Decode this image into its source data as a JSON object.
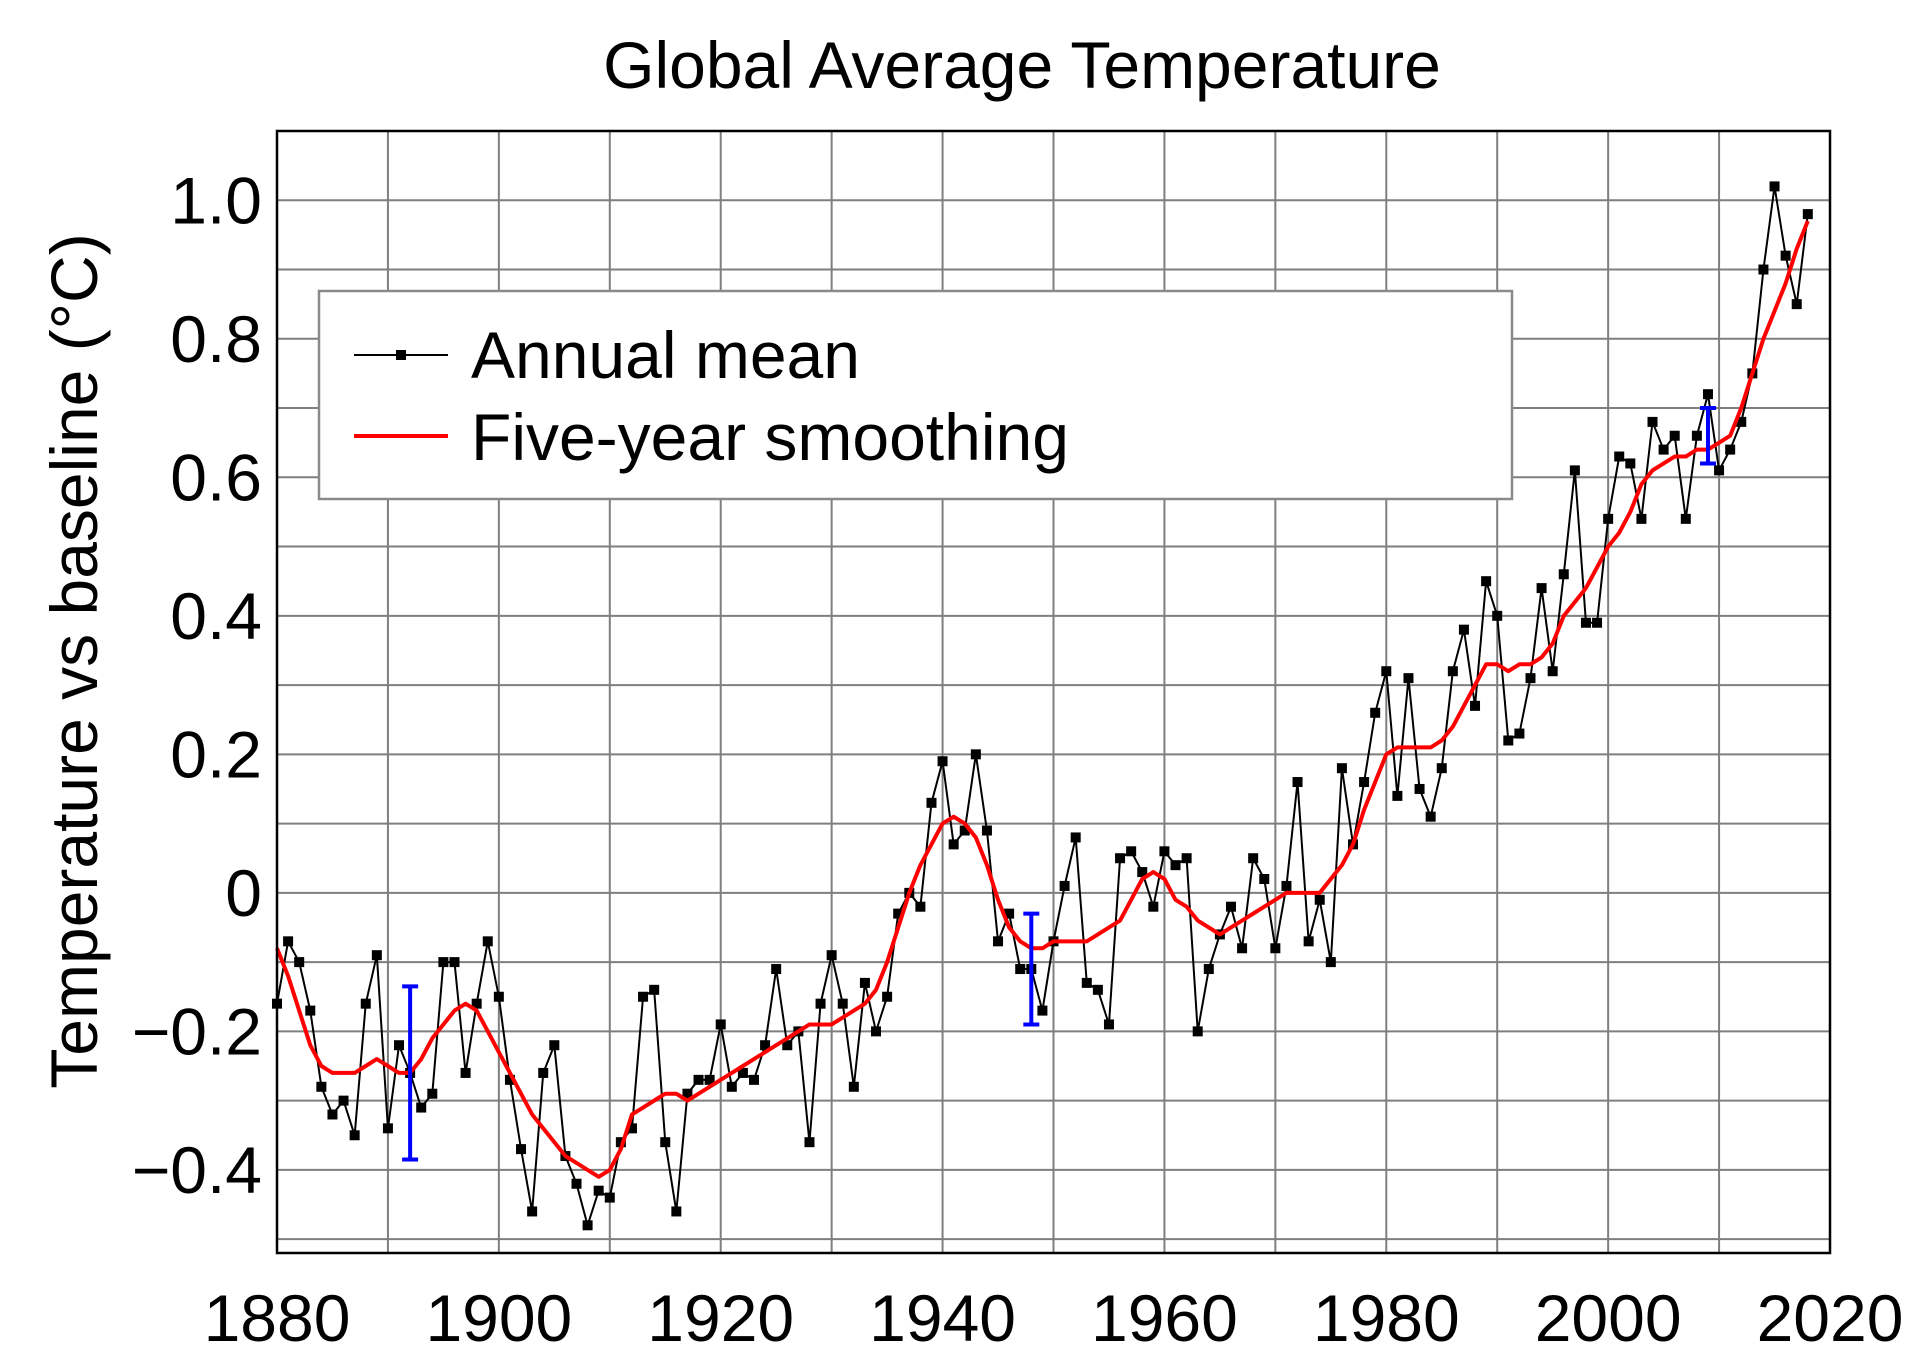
{
  "chart_data": {
    "type": "line",
    "title": "Global Average Temperature",
    "xlabel": "",
    "ylabel": "Temperature vs baseline (°C)",
    "xlim": [
      1880,
      2020
    ],
    "ylim": [
      -0.52,
      1.1
    ],
    "grid": true,
    "legend_position": "top-left",
    "x_ticks": [
      1880,
      1900,
      1920,
      1940,
      1960,
      1980,
      2000,
      2020
    ],
    "x_tick_labels": [
      "1880",
      "1900",
      "1920",
      "1940",
      "1960",
      "1980",
      "2000",
      "2020"
    ],
    "y_ticks": [
      -0.4,
      -0.2,
      0,
      0.2,
      0.4,
      0.6,
      0.8,
      1.0
    ],
    "y_tick_labels": [
      "−0.4",
      "−0.2",
      "0",
      "0.2",
      "0.4",
      "0.6",
      "0.8",
      "1.0"
    ],
    "series": [
      {
        "name": "Annual mean",
        "color": "#000000",
        "marker": "square",
        "x": [
          1880,
          1881,
          1882,
          1883,
          1884,
          1885,
          1886,
          1887,
          1888,
          1889,
          1890,
          1891,
          1892,
          1893,
          1894,
          1895,
          1896,
          1897,
          1898,
          1899,
          1900,
          1901,
          1902,
          1903,
          1904,
          1905,
          1906,
          1907,
          1908,
          1909,
          1910,
          1911,
          1912,
          1913,
          1914,
          1915,
          1916,
          1917,
          1918,
          1919,
          1920,
          1921,
          1922,
          1923,
          1924,
          1925,
          1926,
          1927,
          1928,
          1929,
          1930,
          1931,
          1932,
          1933,
          1934,
          1935,
          1936,
          1937,
          1938,
          1939,
          1940,
          1941,
          1942,
          1943,
          1944,
          1945,
          1946,
          1947,
          1948,
          1949,
          1950,
          1951,
          1952,
          1953,
          1954,
          1955,
          1956,
          1957,
          1958,
          1959,
          1960,
          1961,
          1962,
          1963,
          1964,
          1965,
          1966,
          1967,
          1968,
          1969,
          1970,
          1971,
          1972,
          1973,
          1974,
          1975,
          1976,
          1977,
          1978,
          1979,
          1980,
          1981,
          1982,
          1983,
          1984,
          1985,
          1986,
          1987,
          1988,
          1989,
          1990,
          1991,
          1992,
          1993,
          1994,
          1995,
          1996,
          1997,
          1998,
          1999,
          2000,
          2001,
          2002,
          2003,
          2004,
          2005,
          2006,
          2007,
          2008,
          2009,
          2010,
          2011,
          2012,
          2013,
          2014,
          2015,
          2016,
          2017,
          2018
        ],
        "values": [
          -0.16,
          -0.07,
          -0.1,
          -0.17,
          -0.28,
          -0.32,
          -0.3,
          -0.35,
          -0.16,
          -0.09,
          -0.34,
          -0.22,
          -0.26,
          -0.31,
          -0.29,
          -0.1,
          -0.1,
          -0.26,
          -0.16,
          -0.07,
          -0.15,
          -0.27,
          -0.37,
          -0.46,
          -0.26,
          -0.22,
          -0.38,
          -0.42,
          -0.48,
          -0.43,
          -0.44,
          -0.36,
          -0.34,
          -0.15,
          -0.14,
          -0.36,
          -0.46,
          -0.29,
          -0.27,
          -0.27,
          -0.19,
          -0.28,
          -0.26,
          -0.27,
          -0.22,
          -0.11,
          -0.22,
          -0.2,
          -0.36,
          -0.16,
          -0.09,
          -0.16,
          -0.28,
          -0.13,
          -0.2,
          -0.15,
          -0.03,
          0.0,
          -0.02,
          0.13,
          0.19,
          0.07,
          0.09,
          0.2,
          0.09,
          -0.07,
          -0.03,
          -0.11,
          -0.11,
          -0.17,
          -0.07,
          0.01,
          0.08,
          -0.13,
          -0.14,
          -0.19,
          0.05,
          0.06,
          0.03,
          -0.02,
          0.06,
          0.04,
          0.05,
          -0.2,
          -0.11,
          -0.06,
          -0.02,
          -0.08,
          0.05,
          0.02,
          -0.08,
          0.01,
          0.16,
          -0.07,
          -0.01,
          -0.1,
          0.18,
          0.07,
          0.16,
          0.26,
          0.32,
          0.14,
          0.31,
          0.15,
          0.11,
          0.18,
          0.32,
          0.38,
          0.27,
          0.45,
          0.4,
          0.22,
          0.23,
          0.31,
          0.44,
          0.32,
          0.46,
          0.61,
          0.39,
          0.39,
          0.54,
          0.63,
          0.62,
          0.54,
          0.68,
          0.64,
          0.66,
          0.54,
          0.66,
          0.72,
          0.61,
          0.64,
          0.68,
          0.75,
          0.9,
          1.02,
          0.92,
          0.85,
          0.98
        ]
      },
      {
        "name": "Five-year smoothing",
        "color": "#ff0000",
        "x": [
          1880,
          1881,
          1882,
          1883,
          1884,
          1885,
          1886,
          1887,
          1888,
          1889,
          1890,
          1891,
          1892,
          1893,
          1894,
          1895,
          1896,
          1897,
          1898,
          1899,
          1900,
          1901,
          1902,
          1903,
          1904,
          1905,
          1906,
          1907,
          1908,
          1909,
          1910,
          1911,
          1912,
          1913,
          1914,
          1915,
          1916,
          1917,
          1918,
          1919,
          1920,
          1921,
          1922,
          1923,
          1924,
          1925,
          1926,
          1927,
          1928,
          1929,
          1930,
          1931,
          1932,
          1933,
          1934,
          1935,
          1936,
          1937,
          1938,
          1939,
          1940,
          1941,
          1942,
          1943,
          1944,
          1945,
          1946,
          1947,
          1948,
          1949,
          1950,
          1951,
          1952,
          1953,
          1954,
          1955,
          1956,
          1957,
          1958,
          1959,
          1960,
          1961,
          1962,
          1963,
          1964,
          1965,
          1966,
          1967,
          1968,
          1969,
          1970,
          1971,
          1972,
          1973,
          1974,
          1975,
          1976,
          1977,
          1978,
          1979,
          1980,
          1981,
          1982,
          1983,
          1984,
          1985,
          1986,
          1987,
          1988,
          1989,
          1990,
          1991,
          1992,
          1993,
          1994,
          1995,
          1996,
          1997,
          1998,
          1999,
          2000,
          2001,
          2002,
          2003,
          2004,
          2005,
          2006,
          2007,
          2008,
          2009,
          2010,
          2011,
          2012,
          2013,
          2014,
          2015,
          2016,
          2017,
          2018
        ],
        "values": [
          -0.08,
          -0.12,
          -0.17,
          -0.22,
          -0.25,
          -0.26,
          -0.26,
          -0.26,
          -0.25,
          -0.24,
          -0.25,
          -0.26,
          -0.26,
          -0.24,
          -0.21,
          -0.19,
          -0.17,
          -0.16,
          -0.17,
          -0.2,
          -0.23,
          -0.26,
          -0.29,
          -0.32,
          -0.34,
          -0.36,
          -0.38,
          -0.39,
          -0.4,
          -0.41,
          -0.4,
          -0.37,
          -0.32,
          -0.31,
          -0.3,
          -0.29,
          -0.29,
          -0.3,
          -0.29,
          -0.28,
          -0.27,
          -0.26,
          -0.25,
          -0.24,
          -0.23,
          -0.22,
          -0.21,
          -0.2,
          -0.19,
          -0.19,
          -0.19,
          -0.18,
          -0.17,
          -0.16,
          -0.14,
          -0.1,
          -0.05,
          0.0,
          0.04,
          0.07,
          0.1,
          0.11,
          0.1,
          0.08,
          0.04,
          -0.01,
          -0.05,
          -0.07,
          -0.08,
          -0.08,
          -0.07,
          -0.07,
          -0.07,
          -0.07,
          -0.06,
          -0.05,
          -0.04,
          -0.01,
          0.02,
          0.03,
          0.02,
          -0.01,
          -0.02,
          -0.04,
          -0.05,
          -0.06,
          -0.05,
          -0.04,
          -0.03,
          -0.02,
          -0.01,
          0.0,
          0.0,
          0.0,
          0.0,
          0.02,
          0.04,
          0.07,
          0.12,
          0.16,
          0.2,
          0.21,
          0.21,
          0.21,
          0.21,
          0.22,
          0.24,
          0.27,
          0.3,
          0.33,
          0.33,
          0.32,
          0.33,
          0.33,
          0.34,
          0.36,
          0.4,
          0.42,
          0.44,
          0.47,
          0.5,
          0.52,
          0.55,
          0.59,
          0.61,
          0.62,
          0.63,
          0.63,
          0.64,
          0.64,
          0.65,
          0.66,
          0.7,
          0.75,
          0.8,
          0.84,
          0.88,
          0.93,
          0.97
        ]
      }
    ],
    "error_bars": [
      {
        "x": 1892,
        "y_low": -0.385,
        "y_high": -0.135,
        "color": "#0000ff"
      },
      {
        "x": 1948,
        "y_low": -0.19,
        "y_high": -0.03,
        "color": "#0000ff"
      },
      {
        "x": 2009,
        "y_low": 0.62,
        "y_high": 0.7,
        "color": "#0000ff"
      }
    ]
  }
}
